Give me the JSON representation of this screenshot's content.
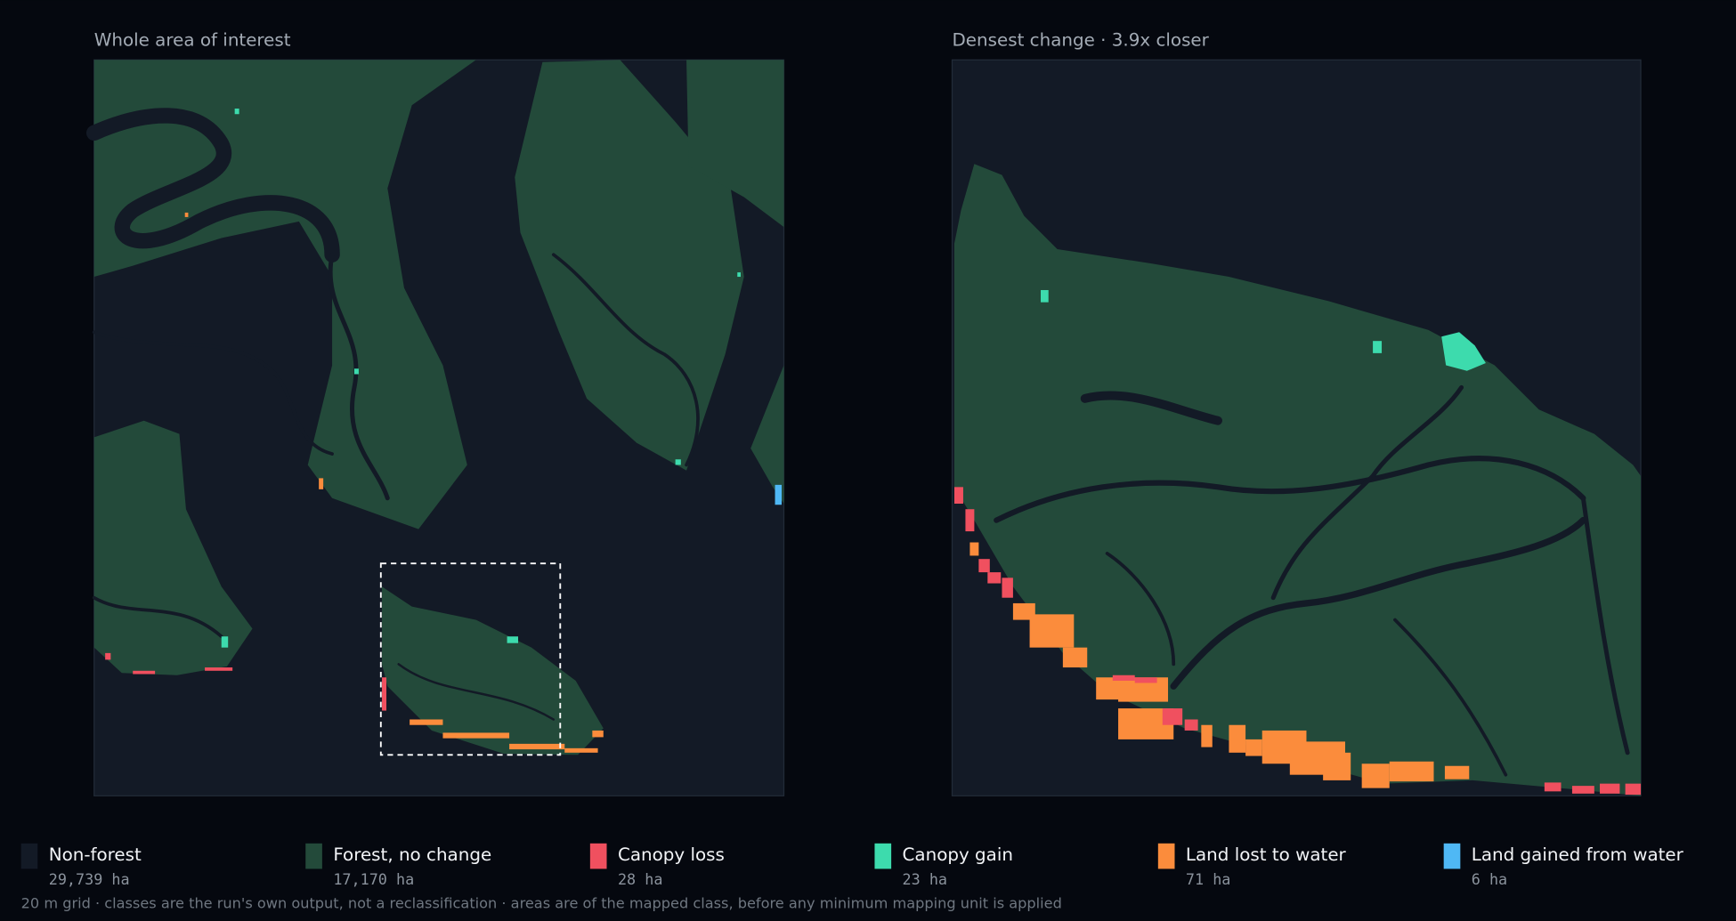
{
  "panels": [
    {
      "title": "Whole area of interest"
    },
    {
      "title": "Densest change  ·  3.9x closer"
    }
  ],
  "legend": [
    {
      "label": "Non-forest",
      "area": "29,739 ha",
      "color": "#131a26"
    },
    {
      "label": "Forest, no change",
      "area": "17,170 ha",
      "color": "#234a3a"
    },
    {
      "label": "Canopy loss",
      "area": "28 ha",
      "color": "#f0505f"
    },
    {
      "label": "Canopy gain",
      "area": "23 ha",
      "color": "#3ddbad"
    },
    {
      "label": "Land lost to water",
      "area": "71 ha",
      "color": "#fb8c3c"
    },
    {
      "label": "Land gained from water",
      "area": "6 ha",
      "color": "#4fb8f5"
    }
  ],
  "footnote": "20 m grid · classes are the run's own output, not a reclassification · areas are of the mapped class, before any minimum mapping unit is applied"
}
